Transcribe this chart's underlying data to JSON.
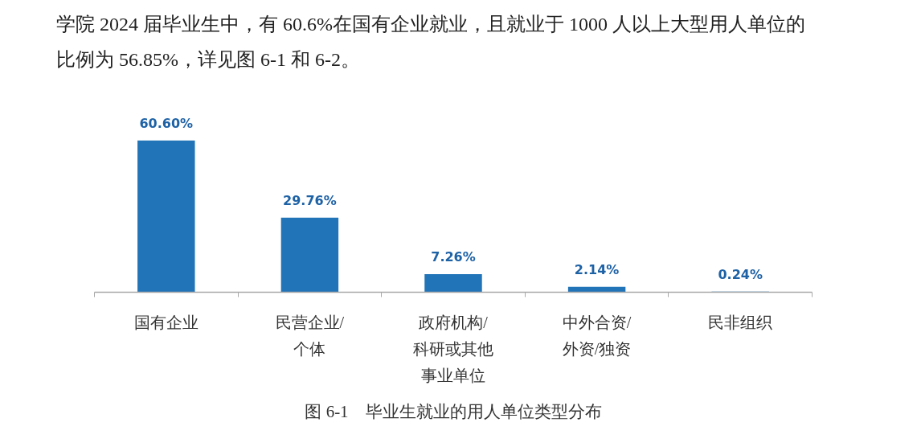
{
  "chart_data": {
    "type": "bar",
    "title": "图 6-1　毕业生就业的用人单位类型分布",
    "annotations": [
      "学院 2024 届毕业生中，有 60.6%在国有企业就业，且就业于 1000 人以上大型用人单位的比例为 56.85%，详见图 6-1 和 6-2。"
    ],
    "categories": [
      "国有企业",
      "民营企业/个体",
      "政府机构/科研或其他事业单位",
      "中外合资/外资/独资",
      "民非组织"
    ],
    "values": [
      60.6,
      29.76,
      7.26,
      2.14,
      0.24
    ],
    "color": "#2274b8",
    "value_labels": [
      "60.60%",
      "29.76%",
      "7.26%",
      "2.14%",
      "0.24%"
    ]
  }
}
